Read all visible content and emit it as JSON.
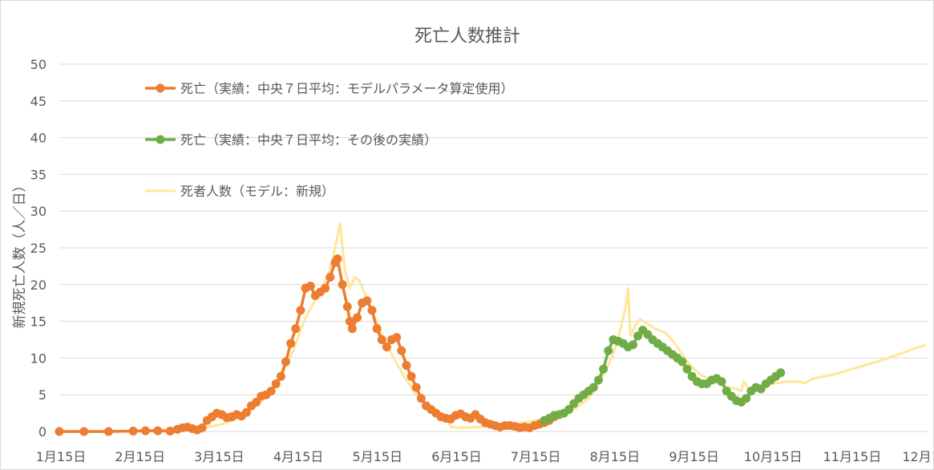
{
  "chart_data": {
    "type": "line",
    "title": "死亡人数推計",
    "ylabel": "新規死亡人数（人／日）",
    "xlabel": "",
    "ylim": [
      0,
      50
    ],
    "yticks": [
      0,
      5,
      10,
      15,
      20,
      25,
      30,
      35,
      40,
      45,
      50
    ],
    "x_tick_labels": [
      "1月15日",
      "2月15日",
      "3月15日",
      "4月15日",
      "5月15日",
      "6月15日",
      "7月15日",
      "8月15日",
      "9月15日",
      "10月15日",
      "11月15日",
      "12月15日"
    ],
    "grid": "horizontal",
    "legend_position": "upper-left-inside",
    "series": [
      {
        "name": "死亡（実績：中央７日平均：モデルパラメータ算定使用）",
        "color": "#ED7D31",
        "style": "line-markers",
        "points": [
          [
            0,
            0
          ],
          [
            10,
            0
          ],
          [
            20,
            0
          ],
          [
            30,
            0.05
          ],
          [
            35,
            0.1
          ],
          [
            40,
            0.1
          ],
          [
            45,
            0.05
          ],
          [
            48,
            0.3
          ],
          [
            50,
            0.5
          ],
          [
            52,
            0.6
          ],
          [
            54,
            0.4
          ],
          [
            56,
            0.2
          ],
          [
            58,
            0.5
          ],
          [
            60,
            1.5
          ],
          [
            62,
            2.0
          ],
          [
            64,
            2.5
          ],
          [
            66,
            2.3
          ],
          [
            68,
            1.9
          ],
          [
            70,
            2.0
          ],
          [
            72,
            2.3
          ],
          [
            74,
            2.1
          ],
          [
            76,
            2.6
          ],
          [
            78,
            3.5
          ],
          [
            80,
            4.0
          ],
          [
            82,
            4.8
          ],
          [
            84,
            5.0
          ],
          [
            86,
            5.5
          ],
          [
            88,
            6.5
          ],
          [
            90,
            7.5
          ],
          [
            92,
            9.5
          ],
          [
            94,
            12.0
          ],
          [
            96,
            14.0
          ],
          [
            98,
            16.5
          ],
          [
            100,
            19.5
          ],
          [
            102,
            19.8
          ],
          [
            104,
            18.5
          ],
          [
            106,
            19.0
          ],
          [
            108,
            19.5
          ],
          [
            110,
            21.0
          ],
          [
            112,
            23.0
          ],
          [
            113,
            23.5
          ],
          [
            115,
            20.0
          ],
          [
            117,
            17.0
          ],
          [
            118,
            15.0
          ],
          [
            119,
            14.0
          ],
          [
            121,
            15.5
          ],
          [
            123,
            17.5
          ],
          [
            125,
            17.8
          ],
          [
            127,
            16.5
          ],
          [
            129,
            14.0
          ],
          [
            131,
            12.5
          ],
          [
            133,
            11.5
          ],
          [
            135,
            12.5
          ],
          [
            137,
            12.8
          ],
          [
            139,
            11.0
          ],
          [
            141,
            9.0
          ],
          [
            143,
            7.5
          ],
          [
            145,
            6.0
          ],
          [
            147,
            4.5
          ],
          [
            149,
            3.5
          ],
          [
            151,
            3.0
          ],
          [
            153,
            2.5
          ],
          [
            155,
            2.0
          ],
          [
            157,
            1.8
          ],
          [
            159,
            1.7
          ],
          [
            161,
            2.2
          ],
          [
            163,
            2.4
          ],
          [
            165,
            2.0
          ],
          [
            167,
            1.8
          ],
          [
            169,
            2.3
          ],
          [
            171,
            1.7
          ],
          [
            173,
            1.2
          ],
          [
            175,
            1.0
          ],
          [
            177,
            0.8
          ],
          [
            179,
            0.6
          ],
          [
            181,
            0.8
          ],
          [
            183,
            0.8
          ],
          [
            185,
            0.7
          ],
          [
            187,
            0.5
          ],
          [
            189,
            0.6
          ],
          [
            191,
            0.5
          ],
          [
            193,
            0.8
          ],
          [
            195,
            1.0
          ],
          [
            197,
            1.2
          ],
          [
            199,
            1.5
          ],
          [
            201,
            2.0
          ]
        ]
      },
      {
        "name": "死亡（実績：中央７日平均：その後の実績）",
        "color": "#70AD47",
        "style": "line-markers",
        "points": [
          [
            197,
            1.5
          ],
          [
            199,
            1.8
          ],
          [
            201,
            2.2
          ],
          [
            203,
            2.3
          ],
          [
            205,
            2.5
          ],
          [
            207,
            3.0
          ],
          [
            209,
            3.8
          ],
          [
            211,
            4.5
          ],
          [
            213,
            5.0
          ],
          [
            215,
            5.5
          ],
          [
            217,
            6.0
          ],
          [
            219,
            7.0
          ],
          [
            221,
            8.5
          ],
          [
            223,
            11.0
          ],
          [
            225,
            12.5
          ],
          [
            227,
            12.3
          ],
          [
            229,
            12.0
          ],
          [
            231,
            11.5
          ],
          [
            233,
            11.8
          ],
          [
            235,
            13.0
          ],
          [
            237,
            13.8
          ],
          [
            239,
            13.2
          ],
          [
            241,
            12.5
          ],
          [
            243,
            12.0
          ],
          [
            245,
            11.5
          ],
          [
            247,
            11.0
          ],
          [
            249,
            10.5
          ],
          [
            251,
            10.0
          ],
          [
            253,
            9.5
          ],
          [
            255,
            8.5
          ],
          [
            257,
            7.5
          ],
          [
            259,
            6.8
          ],
          [
            261,
            6.5
          ],
          [
            263,
            6.5
          ],
          [
            265,
            7.0
          ],
          [
            267,
            7.2
          ],
          [
            269,
            6.8
          ],
          [
            271,
            5.5
          ],
          [
            273,
            4.8
          ],
          [
            275,
            4.2
          ],
          [
            277,
            4.0
          ],
          [
            279,
            4.5
          ],
          [
            281,
            5.5
          ],
          [
            283,
            6.0
          ],
          [
            285,
            5.8
          ],
          [
            287,
            6.5
          ],
          [
            289,
            7.0
          ],
          [
            291,
            7.5
          ],
          [
            293,
            8.0
          ]
        ]
      },
      {
        "name": "死者人数（モデル：新規）",
        "color": "#FFE699",
        "style": "line",
        "points": [
          [
            28,
            0
          ],
          [
            30,
            0.1
          ],
          [
            40,
            0.2
          ],
          [
            50,
            0.3
          ],
          [
            55,
            0.4
          ],
          [
            60,
            0.6
          ],
          [
            65,
            0.9
          ],
          [
            70,
            1.5
          ],
          [
            75,
            2.2
          ],
          [
            80,
            3.5
          ],
          [
            85,
            5.0
          ],
          [
            90,
            7.5
          ],
          [
            95,
            11.0
          ],
          [
            100,
            15.5
          ],
          [
            105,
            18.5
          ],
          [
            110,
            22.0
          ],
          [
            112,
            25.0
          ],
          [
            114,
            28.3
          ],
          [
            116,
            22.0
          ],
          [
            118,
            19.5
          ],
          [
            120,
            21.0
          ],
          [
            122,
            20.5
          ],
          [
            125,
            18.0
          ],
          [
            130,
            14.0
          ],
          [
            135,
            10.5
          ],
          [
            140,
            7.5
          ],
          [
            145,
            5.0
          ],
          [
            150,
            3.2
          ],
          [
            155,
            2.0
          ],
          [
            157,
            1.8
          ],
          [
            159,
            0.6
          ],
          [
            163,
            0.5
          ],
          [
            170,
            0.6
          ],
          [
            180,
            0.9
          ],
          [
            190,
            1.3
          ],
          [
            200,
            2.0
          ],
          [
            210,
            3.2
          ],
          [
            215,
            4.5
          ],
          [
            220,
            7.0
          ],
          [
            225,
            10.5
          ],
          [
            228,
            14.0
          ],
          [
            230,
            17.0
          ],
          [
            231,
            19.5
          ],
          [
            232,
            13.0
          ],
          [
            234,
            14.5
          ],
          [
            236,
            15.3
          ],
          [
            238,
            14.8
          ],
          [
            242,
            14.0
          ],
          [
            246,
            13.5
          ],
          [
            250,
            12.0
          ],
          [
            255,
            9.5
          ],
          [
            260,
            7.8
          ],
          [
            265,
            7.0
          ],
          [
            270,
            6.2
          ],
          [
            275,
            5.8
          ],
          [
            277,
            5.5
          ],
          [
            278,
            6.8
          ],
          [
            280,
            5.8
          ],
          [
            285,
            6.2
          ],
          [
            290,
            6.5
          ],
          [
            295,
            6.8
          ],
          [
            300,
            6.8
          ],
          [
            303,
            6.6
          ],
          [
            306,
            7.2
          ],
          [
            315,
            7.8
          ],
          [
            325,
            8.8
          ],
          [
            335,
            9.8
          ],
          [
            345,
            11.0
          ],
          [
            352,
            11.8
          ]
        ]
      }
    ]
  }
}
